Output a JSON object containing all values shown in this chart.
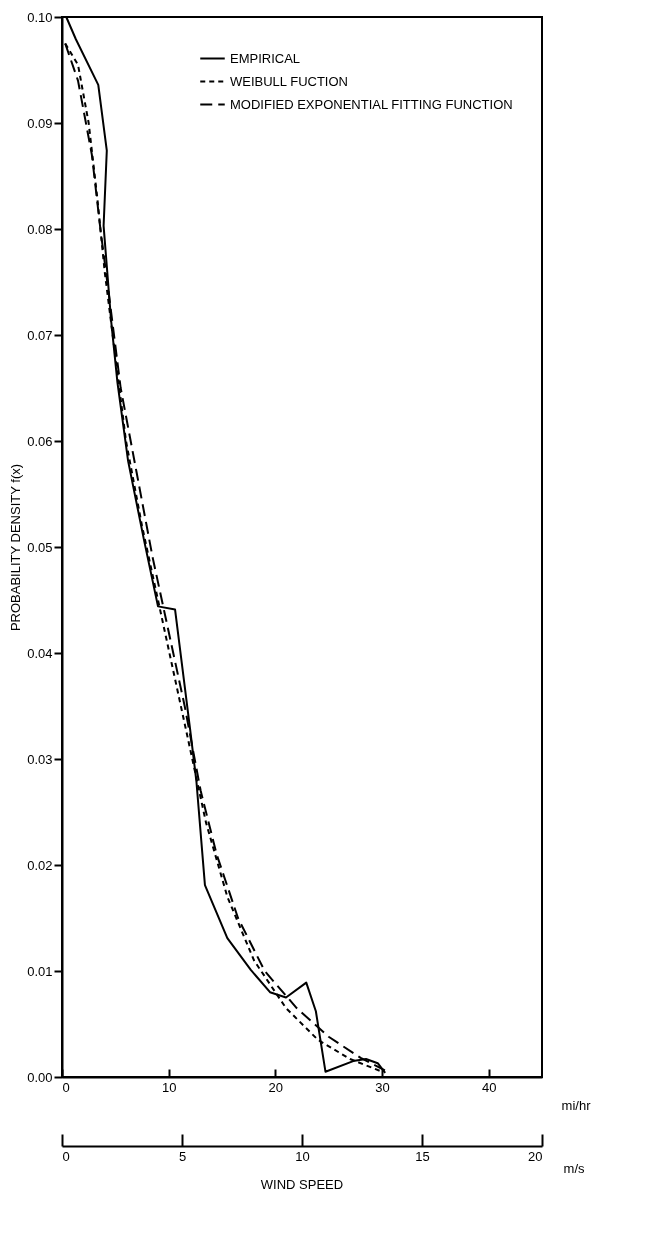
{
  "chart_data": {
    "type": "line",
    "xlabel": "mi/hr",
    "ylabel": "PROBABILITY DENSITY f(x)",
    "x2label": "m/s",
    "annotations": [
      "WIND SPEED"
    ],
    "xlim": [
      0,
      45
    ],
    "xticks": [
      0,
      10,
      20,
      30,
      40
    ],
    "x2lim": [
      0,
      20
    ],
    "x2ticks": [
      0,
      5,
      10,
      15,
      20
    ],
    "ylim": [
      0,
      0.1
    ],
    "yticks": [
      {
        "value": 0,
        "label": "0.00"
      },
      {
        "value": 0.01,
        "label": "0.01"
      },
      {
        "value": 0.02,
        "label": "0.02"
      },
      {
        "value": 0.03,
        "label": "0.03"
      },
      {
        "value": 0.04,
        "label": "0.04"
      },
      {
        "value": 0.05,
        "label": "0.05"
      },
      {
        "value": 0.06,
        "label": "0.06"
      },
      {
        "value": 0.07,
        "label": "0.07"
      },
      {
        "value": 0.08,
        "label": "0.08"
      },
      {
        "value": 0.09,
        "label": "0.09"
      },
      {
        "value": 0.1,
        "label": "0.10"
      }
    ],
    "grid": false,
    "legend": "top right",
    "marker": "none",
    "series": [
      {
        "name": "EMPIRICAL",
        "color": "#000000",
        "line_style": "solid",
        "x": [
          0.4,
          1.3,
          3.4,
          4.2,
          3.9,
          4.6,
          5.2,
          6.2,
          7.7,
          9.0,
          10.6,
          12.0,
          12.6,
          13.4,
          15.5,
          17.7,
          19.5,
          21.0,
          22.9,
          23.8,
          24.7,
          27.3,
          28.5,
          29.6,
          30.3
        ],
        "values": [
          0.1,
          0.0979,
          0.0936,
          0.0874,
          0.0803,
          0.0714,
          0.0655,
          0.0581,
          0.0506,
          0.0444,
          0.0441,
          0.0329,
          0.0279,
          0.0181,
          0.0131,
          0.0101,
          0.008,
          0.0075,
          0.0089,
          0.0062,
          0.0005,
          0.0015,
          0.0017,
          0.0013,
          0.0004
        ]
      },
      {
        "name": "WEIBULL FUCTION",
        "color": "#000000",
        "line_style": "dotted",
        "x": [
          0.3,
          1.5,
          2.5,
          3.3,
          4,
          5,
          6,
          7.5,
          9,
          10.5,
          12,
          13.5,
          15.5,
          18,
          21,
          24,
          27,
          30
        ],
        "values": [
          0.0975,
          0.0955,
          0.09,
          0.083,
          0.076,
          0.068,
          0.06,
          0.052,
          0.045,
          0.038,
          0.031,
          0.024,
          0.017,
          0.011,
          0.0065,
          0.0035,
          0.0017,
          0.0005
        ]
      },
      {
        "name": "MODIFIED EXPONENTIAL FITTING FUNCTION",
        "color": "#000000",
        "line_style": "dashed",
        "x": [
          0.3,
          1.5,
          2.8,
          3.6,
          4.5,
          5.5,
          7,
          8.5,
          10,
          11.5,
          13,
          14.5,
          16.5,
          19,
          22,
          25,
          28,
          30.5
        ],
        "values": [
          0.0975,
          0.094,
          0.087,
          0.08,
          0.073,
          0.065,
          0.057,
          0.049,
          0.042,
          0.035,
          0.027,
          0.021,
          0.015,
          0.01,
          0.0065,
          0.0038,
          0.0018,
          0.0005
        ]
      }
    ]
  }
}
